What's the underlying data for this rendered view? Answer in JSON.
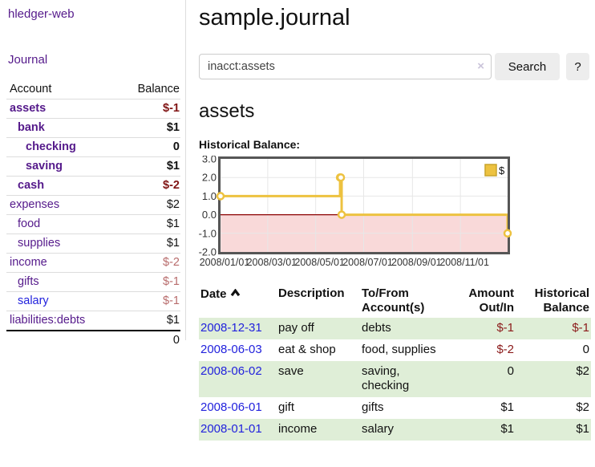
{
  "app": {
    "title": "hledger-web"
  },
  "sidebar": {
    "nav_journal": "Journal",
    "accounts_table": {
      "header_account": "Account",
      "header_balance": "Balance",
      "rows": [
        {
          "name": "assets",
          "balance": "$-1"
        },
        {
          "name": "bank",
          "balance": "$1"
        },
        {
          "name": "checking",
          "balance": "0"
        },
        {
          "name": "saving",
          "balance": "$1"
        },
        {
          "name": "cash",
          "balance": "$-2"
        },
        {
          "name": "expenses",
          "balance": "$2"
        },
        {
          "name": "food",
          "balance": "$1"
        },
        {
          "name": "supplies",
          "balance": "$1"
        },
        {
          "name": "income",
          "balance": "$-2"
        },
        {
          "name": "gifts",
          "balance": "$-1"
        },
        {
          "name": "salary",
          "balance": "$-1"
        },
        {
          "name": "liabilities:debts",
          "balance": "$1"
        }
      ],
      "total": "0"
    }
  },
  "main": {
    "title": "sample.journal",
    "search": {
      "value": "inacct:assets",
      "clear_icon": "×",
      "button_label": "Search",
      "help_label": "?"
    },
    "account_heading": "assets",
    "chart_label": "Historical Balance:",
    "register_table": {
      "headers": {
        "date": "Date",
        "description": "Description",
        "tofrom_l1": "To/From",
        "tofrom_l2": "Account(s)",
        "amount_l1": "Amount",
        "amount_l2": "Out/In",
        "balance_l1": "Historical",
        "balance_l2": "Balance"
      },
      "rows": [
        {
          "date": "2008-12-31",
          "description": "pay off",
          "accounts": "debts",
          "amount": "$-1",
          "balance": "$-1"
        },
        {
          "date": "2008-06-03",
          "description": "eat & shop",
          "accounts": "food, supplies",
          "amount": "$-2",
          "balance": "0"
        },
        {
          "date": "2008-06-02",
          "description": "save",
          "accounts": "saving, checking",
          "amount": "0",
          "balance": "$2"
        },
        {
          "date": "2008-06-01",
          "description": "gift",
          "accounts": "gifts",
          "amount": "$1",
          "balance": "$2"
        },
        {
          "date": "2008-01-01",
          "description": "income",
          "accounts": "salary",
          "amount": "$1",
          "balance": "$1"
        }
      ]
    }
  },
  "chart_data": {
    "type": "line",
    "step": true,
    "title": "Historical Balance:",
    "series": [
      {
        "name": "$",
        "color": "#EDC240",
        "points": [
          [
            "2008-01-01",
            1
          ],
          [
            "2008-06-01",
            2
          ],
          [
            "2008-06-02",
            2
          ],
          [
            "2008-06-03",
            0
          ],
          [
            "2008-12-31",
            -1
          ]
        ]
      }
    ],
    "xlim": [
      "2008-01-01",
      "2008-12-31"
    ],
    "ylim": [
      -2,
      3
    ],
    "yticks": [
      {
        "v": 3,
        "label": "3.0"
      },
      {
        "v": 2,
        "label": "2.0"
      },
      {
        "v": 1,
        "label": "1.0"
      },
      {
        "v": 0,
        "label": "0.0"
      },
      {
        "v": -1,
        "label": "-1.0"
      },
      {
        "v": -2,
        "label": "-2.0"
      }
    ],
    "xticks": [
      {
        "date": "2008-01-01",
        "label": "2008/01/01"
      },
      {
        "date": "2008-03-01",
        "label": "2008/03/01"
      },
      {
        "date": "2008-05-01",
        "label": "2008/05/01"
      },
      {
        "date": "2008-07-01",
        "label": "2008/07/01"
      },
      {
        "date": "2008-09-01",
        "label": "2008/09/01"
      },
      {
        "date": "2008-11-01",
        "label": "2008/11/01"
      }
    ],
    "legend": {
      "label": "$",
      "position": "top-right"
    },
    "grid": true,
    "negative_fill": "#f9d9d9",
    "zero_line_color": "#8b0000",
    "border_color": "#565656",
    "grid_color": "#e7e7e7"
  },
  "colors": {
    "link_purple": "#551a8b",
    "link_blue": "#2222dd",
    "negative_dark": "#801414",
    "negative_rose": "#b86c6c",
    "negative_table": "#8b1a1a",
    "row_green": "#dfeed7",
    "series_gold": "#EDC240"
  }
}
